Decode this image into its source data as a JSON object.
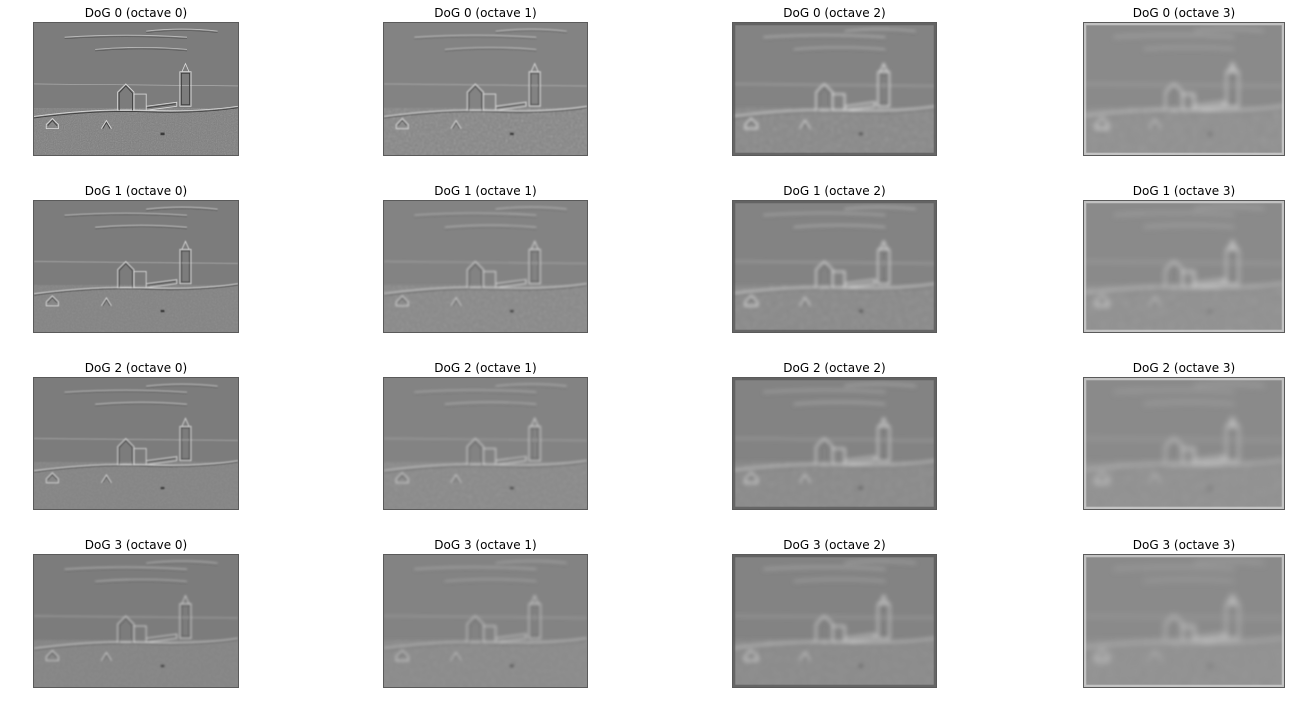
{
  "figure": {
    "background": "#ffffff",
    "colormap": "gray",
    "rows": 4,
    "cols": 4
  },
  "panels": [
    {
      "title": "DoG 0 (octave 0)",
      "dog": 0,
      "octave": 0
    },
    {
      "title": "DoG 0 (octave 1)",
      "dog": 0,
      "octave": 1
    },
    {
      "title": "DoG 0 (octave 2)",
      "dog": 0,
      "octave": 2
    },
    {
      "title": "DoG 0 (octave 3)",
      "dog": 0,
      "octave": 3
    },
    {
      "title": "DoG 1 (octave 0)",
      "dog": 1,
      "octave": 0
    },
    {
      "title": "DoG 1 (octave 1)",
      "dog": 1,
      "octave": 1
    },
    {
      "title": "DoG 1 (octave 2)",
      "dog": 1,
      "octave": 2
    },
    {
      "title": "DoG 1 (octave 3)",
      "dog": 1,
      "octave": 3
    },
    {
      "title": "DoG 2 (octave 0)",
      "dog": 2,
      "octave": 0
    },
    {
      "title": "DoG 2 (octave 1)",
      "dog": 2,
      "octave": 1
    },
    {
      "title": "DoG 2 (octave 2)",
      "dog": 2,
      "octave": 2
    },
    {
      "title": "DoG 2 (octave 3)",
      "dog": 2,
      "octave": 3
    },
    {
      "title": "DoG 3 (octave 0)",
      "dog": 3,
      "octave": 0
    },
    {
      "title": "DoG 3 (octave 1)",
      "dog": 3,
      "octave": 1
    },
    {
      "title": "DoG 3 (octave 2)",
      "dog": 3,
      "octave": 2
    },
    {
      "title": "DoG 3 (octave 3)",
      "dog": 3,
      "octave": 3
    }
  ]
}
